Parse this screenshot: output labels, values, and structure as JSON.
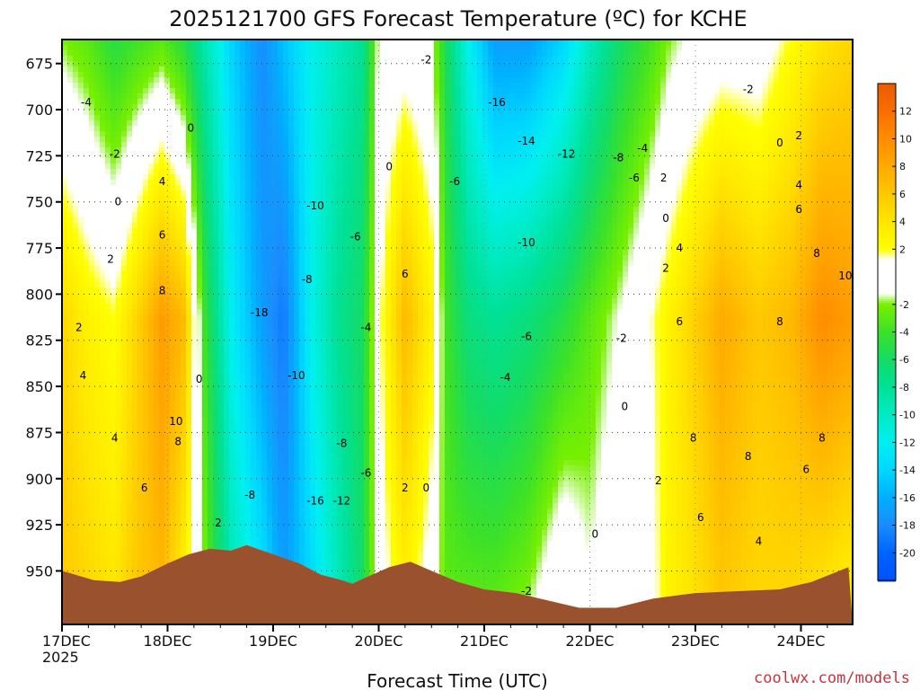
{
  "chart_data": {
    "type": "heatmap",
    "title": "2025121700 GFS Forecast Temperature (ºC) for KCHE",
    "xlabel": "Forecast Time (UTC)",
    "ylabel": "",
    "credit": "coolwx.com/models",
    "x_ticks": [
      {
        "label": "17DEC",
        "sub": "2025",
        "t": 0
      },
      {
        "label": "18DEC",
        "sub": "",
        "t": 1
      },
      {
        "label": "19DEC",
        "sub": "",
        "t": 2
      },
      {
        "label": "20DEC",
        "sub": "",
        "t": 3
      },
      {
        "label": "21DEC",
        "sub": "",
        "t": 4
      },
      {
        "label": "22DEC",
        "sub": "",
        "t": 5
      },
      {
        "label": "23DEC",
        "sub": "",
        "t": 6
      },
      {
        "label": "24DEC",
        "sub": "",
        "t": 7
      }
    ],
    "xlim_days": [
      0,
      7.45
    ],
    "y_ticks": [
      675,
      700,
      725,
      750,
      775,
      800,
      825,
      850,
      875,
      900,
      925,
      950
    ],
    "ylim_hpa": [
      662,
      979
    ],
    "colorbar": {
      "labels": [
        12,
        10,
        8,
        6,
        4,
        2,
        -2,
        -4,
        -6,
        -8,
        -10,
        -12,
        -14,
        -16,
        -18,
        -20
      ],
      "range": [
        -22,
        14
      ]
    },
    "terrain_color": "#9a522e",
    "terrain_surface_hpa": [
      [
        0.0,
        950
      ],
      [
        0.3,
        955
      ],
      [
        0.55,
        956
      ],
      [
        0.75,
        953
      ],
      [
        1.0,
        946
      ],
      [
        1.2,
        941
      ],
      [
        1.4,
        938
      ],
      [
        1.6,
        939
      ],
      [
        1.75,
        936
      ],
      [
        2.0,
        941
      ],
      [
        2.25,
        946
      ],
      [
        2.45,
        952
      ],
      [
        2.65,
        955
      ],
      [
        2.75,
        957
      ],
      [
        2.9,
        953
      ],
      [
        3.1,
        948
      ],
      [
        3.3,
        945
      ],
      [
        3.5,
        950
      ],
      [
        3.75,
        956
      ],
      [
        4.0,
        960
      ],
      [
        4.3,
        962
      ],
      [
        4.6,
        966
      ],
      [
        4.9,
        970
      ],
      [
        5.25,
        970
      ],
      [
        5.6,
        965
      ],
      [
        6.0,
        962
      ],
      [
        6.4,
        961
      ],
      [
        6.8,
        960
      ],
      [
        7.1,
        956
      ],
      [
        7.45,
        948
      ]
    ],
    "temperature_field": [
      {
        "t": 0.0,
        "top": -2,
        "mid": 5,
        "low": 6
      },
      {
        "t": 0.25,
        "top": -3,
        "mid": 3,
        "low": 5
      },
      {
        "t": 0.5,
        "top": -5,
        "mid": 2,
        "low": 4
      },
      {
        "t": 0.7,
        "top": -4,
        "mid": 5,
        "low": 6
      },
      {
        "t": 0.95,
        "top": -3,
        "mid": 9,
        "low": 7
      },
      {
        "t": 1.15,
        "top": -5,
        "mid": 7,
        "low": 3
      },
      {
        "t": 1.35,
        "top": -9,
        "mid": -4,
        "low": -2
      },
      {
        "t": 1.6,
        "top": -14,
        "mid": -12,
        "low": -9
      },
      {
        "t": 1.9,
        "top": -18,
        "mid": -17,
        "low": -13
      },
      {
        "t": 2.1,
        "top": -15,
        "mid": -19,
        "low": -17
      },
      {
        "t": 2.35,
        "top": -12,
        "mid": -12,
        "low": -14
      },
      {
        "t": 2.6,
        "top": -10,
        "mid": -8,
        "low": -10
      },
      {
        "t": 2.85,
        "top": -8,
        "mid": -6,
        "low": -6
      },
      {
        "t": 3.0,
        "top": -1,
        "mid": 1,
        "low": 0
      },
      {
        "t": 3.25,
        "top": 0,
        "mid": 7,
        "low": 3
      },
      {
        "t": 3.5,
        "top": -1,
        "mid": 3,
        "low": 0
      },
      {
        "t": 3.65,
        "top": -6,
        "mid": -4,
        "low": -3
      },
      {
        "t": 3.85,
        "top": -12,
        "mid": -7,
        "low": -3
      },
      {
        "t": 4.1,
        "top": -17,
        "mid": -8,
        "low": -3
      },
      {
        "t": 4.4,
        "top": -17,
        "mid": -7,
        "low": -2
      },
      {
        "t": 4.75,
        "top": -14,
        "mid": -5,
        "low": 1
      },
      {
        "t": 5.0,
        "top": -10,
        "mid": -3,
        "low": -1
      },
      {
        "t": 5.3,
        "top": -6,
        "mid": -1,
        "low": 1
      },
      {
        "t": 5.55,
        "top": -4,
        "mid": 1,
        "low": 0
      },
      {
        "t": 5.75,
        "top": -2,
        "mid": 3,
        "low": 3
      },
      {
        "t": 5.95,
        "top": -1,
        "mid": 5,
        "low": 4
      },
      {
        "t": 6.25,
        "top": 0,
        "mid": 8,
        "low": 6
      },
      {
        "t": 6.6,
        "top": 0,
        "mid": 6,
        "low": 5
      },
      {
        "t": 6.9,
        "top": 2,
        "mid": 7,
        "low": 5
      },
      {
        "t": 7.2,
        "top": 4,
        "mid": 10,
        "low": 4
      },
      {
        "t": 7.45,
        "top": 5,
        "mid": 9,
        "low": 3
      }
    ],
    "contour_labels": [
      {
        "text": "-4",
        "t": 0.23,
        "p": 696
      },
      {
        "text": "-2",
        "t": 0.5,
        "p": 724
      },
      {
        "text": "0",
        "t": 0.53,
        "p": 750
      },
      {
        "text": "2",
        "t": 0.46,
        "p": 781
      },
      {
        "text": "2",
        "t": 0.16,
        "p": 818
      },
      {
        "text": "4",
        "t": 0.2,
        "p": 844
      },
      {
        "text": "4",
        "t": 0.5,
        "p": 878
      },
      {
        "text": "6",
        "t": 0.78,
        "p": 905
      },
      {
        "text": "4",
        "t": 0.95,
        "p": 739
      },
      {
        "text": "6",
        "t": 0.95,
        "p": 768
      },
      {
        "text": "8",
        "t": 0.95,
        "p": 798
      },
      {
        "text": "10",
        "t": 1.08,
        "p": 869
      },
      {
        "text": "8",
        "t": 1.1,
        "p": 880
      },
      {
        "text": "0",
        "t": 1.22,
        "p": 710
      },
      {
        "text": "0",
        "t": 1.3,
        "p": 846
      },
      {
        "text": "2",
        "t": 1.48,
        "p": 924
      },
      {
        "text": "-8",
        "t": 1.78,
        "p": 909
      },
      {
        "text": "-18",
        "t": 1.87,
        "p": 810
      },
      {
        "text": "-10",
        "t": 2.22,
        "p": 844
      },
      {
        "text": "-10",
        "t": 2.4,
        "p": 752
      },
      {
        "text": "-8",
        "t": 2.32,
        "p": 792
      },
      {
        "text": "-6",
        "t": 2.78,
        "p": 769
      },
      {
        "text": "-4",
        "t": 2.88,
        "p": 818
      },
      {
        "text": "-8",
        "t": 2.65,
        "p": 881
      },
      {
        "text": "-6",
        "t": 2.88,
        "p": 897
      },
      {
        "text": "-16",
        "t": 2.4,
        "p": 912
      },
      {
        "text": "-12",
        "t": 2.65,
        "p": 912
      },
      {
        "text": "0",
        "t": 3.1,
        "p": 731
      },
      {
        "text": "6",
        "t": 3.25,
        "p": 789
      },
      {
        "text": "2",
        "t": 3.25,
        "p": 905
      },
      {
        "text": "0",
        "t": 3.45,
        "p": 905
      },
      {
        "text": "-2",
        "t": 3.45,
        "p": 673
      },
      {
        "text": "-6",
        "t": 3.72,
        "p": 739
      },
      {
        "text": "-16",
        "t": 4.12,
        "p": 696
      },
      {
        "text": "-14",
        "t": 4.4,
        "p": 717
      },
      {
        "text": "-12",
        "t": 4.78,
        "p": 724
      },
      {
        "text": "-10",
        "t": 4.4,
        "p": 772
      },
      {
        "text": "-6",
        "t": 4.4,
        "p": 823
      },
      {
        "text": "-4",
        "t": 4.2,
        "p": 845
      },
      {
        "text": "-8",
        "t": 5.27,
        "p": 726
      },
      {
        "text": "-6",
        "t": 5.42,
        "p": 737
      },
      {
        "text": "-4",
        "t": 5.5,
        "p": 721
      },
      {
        "text": "2",
        "t": 5.7,
        "p": 737
      },
      {
        "text": "0",
        "t": 5.72,
        "p": 759
      },
      {
        "text": "2",
        "t": 5.72,
        "p": 786
      },
      {
        "text": "-2",
        "t": 5.3,
        "p": 824
      },
      {
        "text": "0",
        "t": 5.33,
        "p": 861
      },
      {
        "text": "0",
        "t": 5.05,
        "p": 930
      },
      {
        "text": "-2",
        "t": 4.4,
        "p": 961
      },
      {
        "text": "4",
        "t": 5.85,
        "p": 775
      },
      {
        "text": "6",
        "t": 5.85,
        "p": 815
      },
      {
        "text": "8",
        "t": 5.98,
        "p": 878
      },
      {
        "text": "2",
        "t": 5.65,
        "p": 901
      },
      {
        "text": "6",
        "t": 6.05,
        "p": 921
      },
      {
        "text": "8",
        "t": 6.5,
        "p": 888
      },
      {
        "text": "8",
        "t": 6.8,
        "p": 815
      },
      {
        "text": "6",
        "t": 6.98,
        "p": 754
      },
      {
        "text": "4",
        "t": 6.98,
        "p": 741
      },
      {
        "text": "2",
        "t": 6.98,
        "p": 714
      },
      {
        "text": "0",
        "t": 6.8,
        "p": 718
      },
      {
        "text": "-2",
        "t": 6.5,
        "p": 689
      },
      {
        "text": "8",
        "t": 7.15,
        "p": 778
      },
      {
        "text": "10",
        "t": 7.42,
        "p": 790
      },
      {
        "text": "8",
        "t": 7.2,
        "p": 878
      },
      {
        "text": "6",
        "t": 7.05,
        "p": 895
      },
      {
        "text": "4",
        "t": 6.6,
        "p": 934
      }
    ],
    "grid": true
  }
}
